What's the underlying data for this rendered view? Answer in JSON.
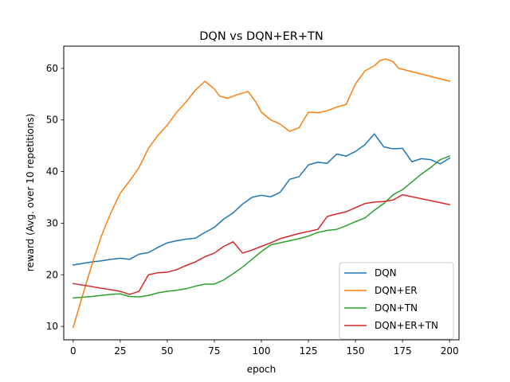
{
  "chart_data": {
    "type": "line",
    "title": "DQN vs DQN+ER+TN",
    "xlabel": "epoch",
    "ylabel": "reward (Avg. over 10 repetitions)",
    "xlim": [
      -5,
      205
    ],
    "ylim": [
      7.4,
      64.3
    ],
    "xticks": [
      0,
      25,
      50,
      75,
      100,
      125,
      150,
      175,
      200
    ],
    "yticks": [
      10,
      20,
      30,
      40,
      50,
      60
    ],
    "grid": false,
    "legend_position": "lower-right",
    "series": [
      {
        "name": "DQN",
        "color": "#1f77b4",
        "points": [
          [
            0,
            21.9
          ],
          [
            5,
            22.2
          ],
          [
            10,
            22.5
          ],
          [
            15,
            22.7
          ],
          [
            20,
            23.0
          ],
          [
            25,
            23.2
          ],
          [
            30,
            23.0
          ],
          [
            35,
            24.0
          ],
          [
            40,
            24.3
          ],
          [
            45,
            25.3
          ],
          [
            50,
            26.2
          ],
          [
            55,
            26.6
          ],
          [
            60,
            26.9
          ],
          [
            65,
            27.1
          ],
          [
            70,
            28.2
          ],
          [
            75,
            29.2
          ],
          [
            80,
            30.8
          ],
          [
            85,
            32.0
          ],
          [
            90,
            33.7
          ],
          [
            95,
            35.0
          ],
          [
            100,
            35.4
          ],
          [
            105,
            35.1
          ],
          [
            110,
            36.0
          ],
          [
            115,
            38.5
          ],
          [
            120,
            39.0
          ],
          [
            125,
            41.3
          ],
          [
            130,
            41.8
          ],
          [
            135,
            41.6
          ],
          [
            140,
            43.4
          ],
          [
            145,
            43.0
          ],
          [
            150,
            43.9
          ],
          [
            155,
            45.2
          ],
          [
            160,
            47.3
          ],
          [
            165,
            44.8
          ],
          [
            170,
            44.4
          ],
          [
            175,
            44.5
          ],
          [
            180,
            41.9
          ],
          [
            185,
            42.5
          ],
          [
            190,
            42.3
          ],
          [
            195,
            41.5
          ],
          [
            200,
            42.6
          ]
        ]
      },
      {
        "name": "DQN+ER",
        "color": "#ff7f0e",
        "points": [
          [
            0,
            9.8
          ],
          [
            5,
            16.0
          ],
          [
            10,
            22.0
          ],
          [
            15,
            27.5
          ],
          [
            20,
            32.0
          ],
          [
            25,
            35.8
          ],
          [
            30,
            38.2
          ],
          [
            35,
            40.8
          ],
          [
            40,
            44.5
          ],
          [
            45,
            47.0
          ],
          [
            50,
            49.0
          ],
          [
            55,
            51.5
          ],
          [
            60,
            53.5
          ],
          [
            65,
            55.8
          ],
          [
            70,
            57.5
          ],
          [
            75,
            56.0
          ],
          [
            78,
            54.6
          ],
          [
            82,
            54.2
          ],
          [
            88,
            55.0
          ],
          [
            93,
            55.5
          ],
          [
            97,
            53.5
          ],
          [
            100,
            51.5
          ],
          [
            105,
            50.0
          ],
          [
            110,
            49.2
          ],
          [
            115,
            47.8
          ],
          [
            120,
            48.5
          ],
          [
            125,
            51.5
          ],
          [
            130,
            51.4
          ],
          [
            135,
            51.8
          ],
          [
            140,
            52.5
          ],
          [
            145,
            53.0
          ],
          [
            150,
            57.0
          ],
          [
            155,
            59.5
          ],
          [
            160,
            60.5
          ],
          [
            163,
            61.5
          ],
          [
            166,
            61.8
          ],
          [
            170,
            61.3
          ],
          [
            173,
            60.0
          ],
          [
            200,
            57.5
          ]
        ]
      },
      {
        "name": "DQN+TN",
        "color": "#2ca02c",
        "points": [
          [
            0,
            15.5
          ],
          [
            10,
            15.8
          ],
          [
            20,
            16.2
          ],
          [
            25,
            16.3
          ],
          [
            30,
            15.8
          ],
          [
            35,
            15.7
          ],
          [
            40,
            16.0
          ],
          [
            45,
            16.5
          ],
          [
            50,
            16.8
          ],
          [
            55,
            17.0
          ],
          [
            60,
            17.3
          ],
          [
            65,
            17.8
          ],
          [
            70,
            18.2
          ],
          [
            75,
            18.2
          ],
          [
            80,
            19.0
          ],
          [
            85,
            20.2
          ],
          [
            90,
            21.5
          ],
          [
            95,
            23.0
          ],
          [
            100,
            24.5
          ],
          [
            105,
            25.8
          ],
          [
            110,
            26.2
          ],
          [
            115,
            26.6
          ],
          [
            120,
            27.0
          ],
          [
            125,
            27.5
          ],
          [
            130,
            28.2
          ],
          [
            135,
            28.6
          ],
          [
            140,
            28.8
          ],
          [
            145,
            29.5
          ],
          [
            150,
            30.3
          ],
          [
            155,
            31.0
          ],
          [
            160,
            32.5
          ],
          [
            165,
            33.8
          ],
          [
            170,
            35.5
          ],
          [
            175,
            36.5
          ],
          [
            180,
            38.0
          ],
          [
            185,
            39.5
          ],
          [
            190,
            40.8
          ],
          [
            195,
            42.3
          ],
          [
            200,
            43.0
          ]
        ]
      },
      {
        "name": "DQN+ER+TN",
        "color": "#d62728",
        "points": [
          [
            0,
            18.3
          ],
          [
            25,
            16.8
          ],
          [
            30,
            16.2
          ],
          [
            35,
            16.8
          ],
          [
            40,
            20.0
          ],
          [
            45,
            20.4
          ],
          [
            50,
            20.5
          ],
          [
            55,
            21.0
          ],
          [
            60,
            21.8
          ],
          [
            65,
            22.5
          ],
          [
            70,
            23.5
          ],
          [
            75,
            24.2
          ],
          [
            80,
            25.5
          ],
          [
            85,
            26.4
          ],
          [
            90,
            24.2
          ],
          [
            95,
            24.8
          ],
          [
            100,
            25.5
          ],
          [
            105,
            26.2
          ],
          [
            110,
            27.0
          ],
          [
            115,
            27.5
          ],
          [
            120,
            28.0
          ],
          [
            125,
            28.4
          ],
          [
            130,
            28.8
          ],
          [
            135,
            31.3
          ],
          [
            140,
            31.8
          ],
          [
            145,
            32.2
          ],
          [
            150,
            33.0
          ],
          [
            155,
            33.8
          ],
          [
            160,
            34.1
          ],
          [
            165,
            34.2
          ],
          [
            170,
            34.5
          ],
          [
            175,
            35.5
          ],
          [
            200,
            33.6
          ]
        ]
      }
    ]
  }
}
